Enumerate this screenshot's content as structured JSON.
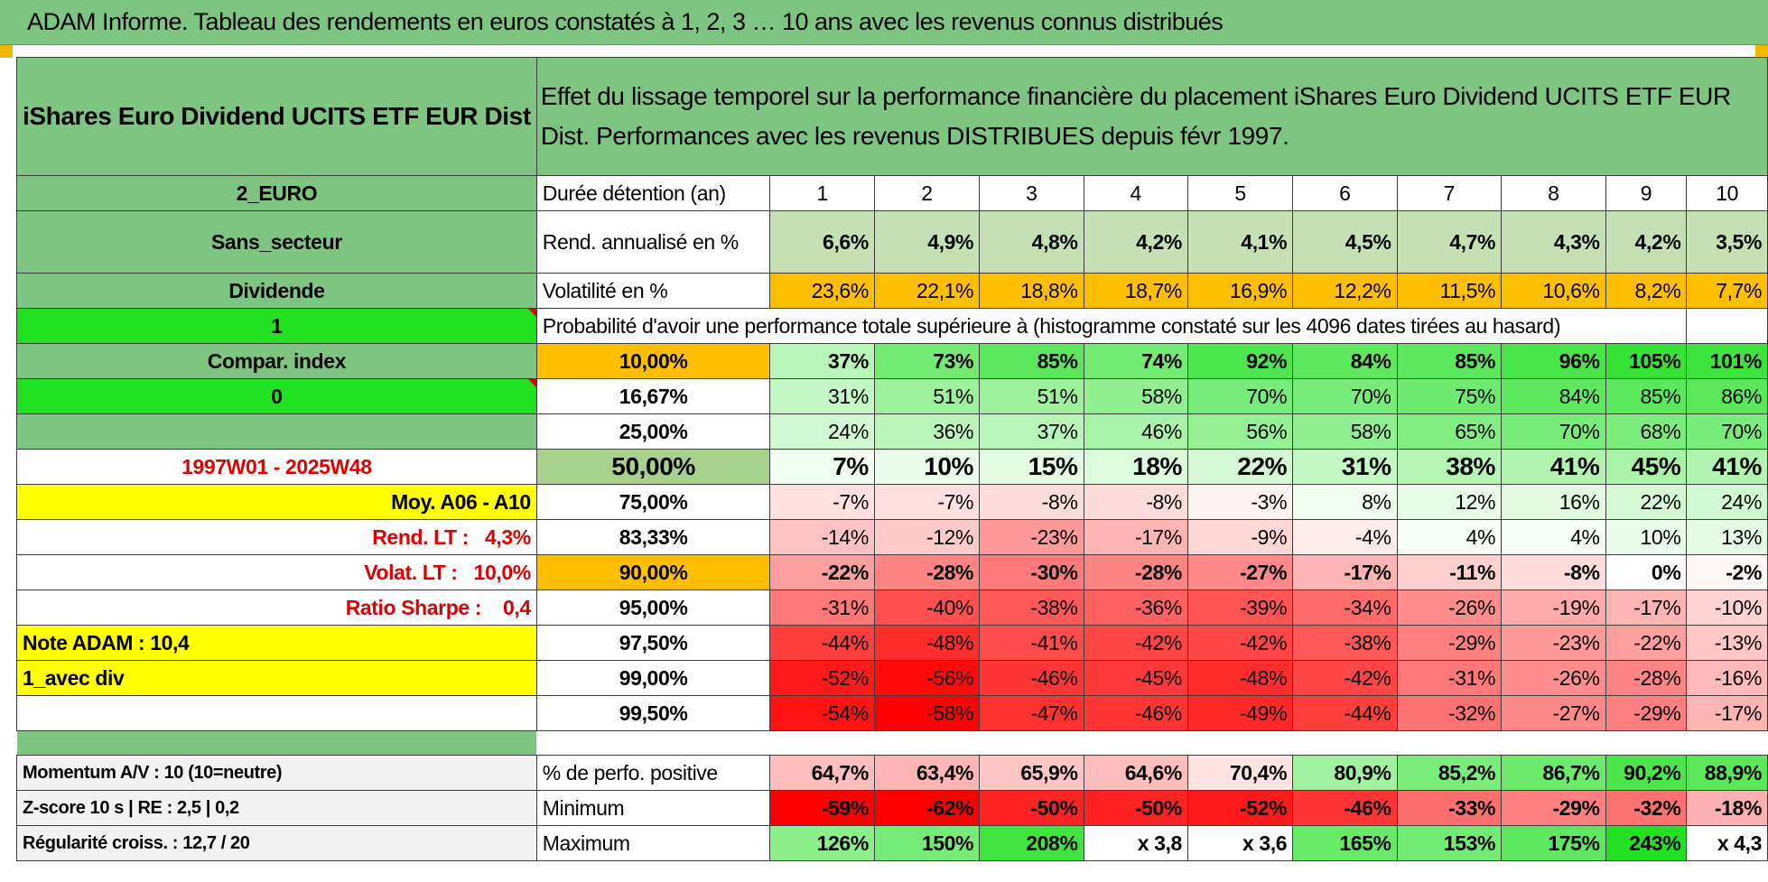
{
  "title": "ADAM Informe. Tableau des rendements en euros constatés à 1, 2, 3 … 10 ans avec les revenus connus distribués",
  "fund_name": "iShares Euro Dividend UCITS ETF EUR Dist",
  "description": "Effet du lissage temporel sur la performance financière du placement iShares Euro Dividend UCITS ETF EUR Dist. Performances avec les revenus DISTRIBUES depuis févr 1997.",
  "left": {
    "currency": "2_EURO",
    "sector": "Sans_secteur",
    "category": "Dividende",
    "flag1": "1",
    "compar_index": "Compar. index",
    "flag0": "0",
    "period": "1997W01 - 2025W48",
    "moy": "Moy. A06 - A10",
    "rend_lt_label": "Rend. LT :",
    "rend_lt_value": "4,3%",
    "volat_lt_label": "Volat. LT :",
    "volat_lt_value": "10,0%",
    "sharpe_label": "Ratio Sharpe :",
    "sharpe_value": "0,4",
    "note_adam": "Note ADAM : 10,4",
    "avec_div": "1_avec div",
    "momentum": "Momentum A/V : 10 (10=neutre)",
    "zscore": "Z-score 10 s | RE : 2,5 | 0,2",
    "regularite": "Régularité croiss. : 12,7 / 20"
  },
  "rows": {
    "duree": {
      "label": "Durée détention (an)",
      "values": [
        "1",
        "2",
        "3",
        "4",
        "5",
        "6",
        "7",
        "8",
        "9",
        "10"
      ]
    },
    "rend": {
      "label": "Rend. annualisé en %",
      "values": [
        "6,6%",
        "4,9%",
        "4,8%",
        "4,2%",
        "4,1%",
        "4,5%",
        "4,7%",
        "4,3%",
        "4,2%",
        "3,5%"
      ]
    },
    "volat": {
      "label": "Volatilité en %",
      "values": [
        "23,6%",
        "22,1%",
        "18,8%",
        "18,7%",
        "16,9%",
        "12,2%",
        "11,5%",
        "10,6%",
        "8,2%",
        "7,7%"
      ]
    },
    "prob_label": "Probabilité d'avoir une performance totale supérieure à (histogramme constaté sur les 4096 dates tirées au hasard)",
    "probabilities": [
      {
        "p": "10,00%",
        "values": [
          "37%",
          "73%",
          "85%",
          "74%",
          "92%",
          "84%",
          "85%",
          "96%",
          "105%",
          "101%"
        ]
      },
      {
        "p": "16,67%",
        "values": [
          "31%",
          "51%",
          "51%",
          "58%",
          "70%",
          "70%",
          "75%",
          "84%",
          "85%",
          "86%"
        ]
      },
      {
        "p": "25,00%",
        "values": [
          "24%",
          "36%",
          "37%",
          "46%",
          "56%",
          "58%",
          "65%",
          "70%",
          "68%",
          "70%"
        ]
      },
      {
        "p": "50,00%",
        "values": [
          "7%",
          "10%",
          "15%",
          "18%",
          "22%",
          "31%",
          "38%",
          "41%",
          "45%",
          "41%"
        ]
      },
      {
        "p": "75,00%",
        "values": [
          "-7%",
          "-7%",
          "-8%",
          "-8%",
          "-3%",
          "8%",
          "12%",
          "16%",
          "22%",
          "24%"
        ]
      },
      {
        "p": "83,33%",
        "values": [
          "-14%",
          "-12%",
          "-23%",
          "-17%",
          "-9%",
          "-4%",
          "4%",
          "4%",
          "10%",
          "13%"
        ]
      },
      {
        "p": "90,00%",
        "values": [
          "-22%",
          "-28%",
          "-30%",
          "-28%",
          "-27%",
          "-17%",
          "-11%",
          "-8%",
          "0%",
          "-2%"
        ]
      },
      {
        "p": "95,00%",
        "values": [
          "-31%",
          "-40%",
          "-38%",
          "-36%",
          "-39%",
          "-34%",
          "-26%",
          "-19%",
          "-17%",
          "-10%"
        ]
      },
      {
        "p": "97,50%",
        "values": [
          "-44%",
          "-48%",
          "-41%",
          "-42%",
          "-42%",
          "-38%",
          "-29%",
          "-23%",
          "-22%",
          "-13%"
        ]
      },
      {
        "p": "99,00%",
        "values": [
          "-52%",
          "-56%",
          "-46%",
          "-45%",
          "-48%",
          "-42%",
          "-31%",
          "-26%",
          "-28%",
          "-16%"
        ]
      },
      {
        "p": "99,50%",
        "values": [
          "-54%",
          "-58%",
          "-47%",
          "-46%",
          "-49%",
          "-44%",
          "-32%",
          "-27%",
          "-29%",
          "-17%"
        ]
      }
    ],
    "positive": {
      "label": "% de perfo. positive",
      "values": [
        "64,7%",
        "63,4%",
        "65,9%",
        "64,6%",
        "70,4%",
        "80,9%",
        "85,2%",
        "86,7%",
        "90,2%",
        "88,9%"
      ]
    },
    "minimum": {
      "label": "Minimum",
      "values": [
        "-59%",
        "-62%",
        "-50%",
        "-50%",
        "-52%",
        "-46%",
        "-33%",
        "-29%",
        "-32%",
        "-18%"
      ]
    },
    "maximum": {
      "label": "Maximum",
      "values": [
        "126%",
        "150%",
        "208%",
        "x 3,8",
        "x 3,6",
        "165%",
        "153%",
        "175%",
        "243%",
        "x 4,3"
      ]
    }
  },
  "colors": {
    "header_green": "#7dc580",
    "bright_green": "#22e022",
    "yellow": "#ffff00",
    "orange": "#ffbf00",
    "label_red": "#e00000"
  }
}
